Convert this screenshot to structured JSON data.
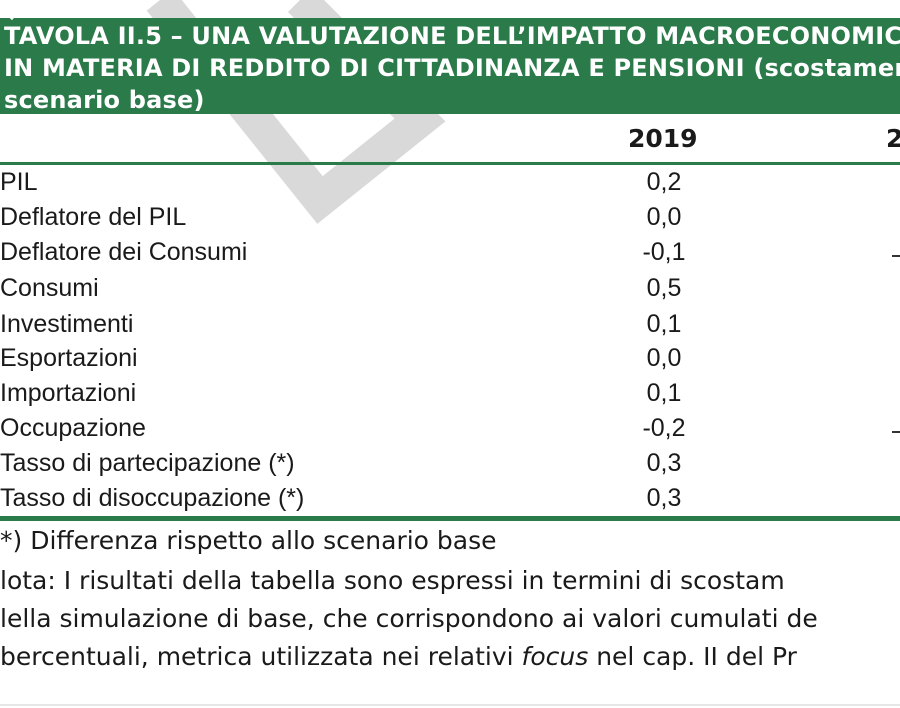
{
  "title": {
    "line1": "TAVOLA II.5 – UNA VALUTAZIONE DELL’IMPATTO MACROECONOMIC",
    "line2": "IN MATERIA DI REDDITO DI CITTADINANZA E PENSIONI (scostamen",
    "line3": "scenario base)"
  },
  "table": {
    "columns": [
      "2019",
      "2"
    ],
    "rows": [
      {
        "label": "PIL",
        "value": "0,2"
      },
      {
        "label": "Deflatore del PIL",
        "value": "0,0"
      },
      {
        "label": "Deflatore dei Consumi",
        "value": "-0,1"
      },
      {
        "label": "Consumi",
        "value": "0,5"
      },
      {
        "label": "Investimenti",
        "value": "0,1"
      },
      {
        "label": "Esportazioni",
        "value": "0,0"
      },
      {
        "label": "Importazioni",
        "value": "0,1"
      },
      {
        "label": "Occupazione",
        "value": "-0,2"
      },
      {
        "label": "Tasso di partecipazione (*)",
        "value": "0,3"
      },
      {
        "label": "Tasso di disoccupazione (*)",
        "value": "0,3"
      }
    ]
  },
  "notes": {
    "footnote": "*) Differenza rispetto allo scenario base",
    "nota_start": "lota: I risultati della tabella sono espressi in termini di scostam",
    "line2": "lella simulazione di base, che corrispondono ai valori cumulati de",
    "line3_before": "bercentuali, metrica utilizzata nei relativi ",
    "line3_italic": "focus",
    "line3_after": " nel cap. II del Pr"
  },
  "colors": {
    "banner": "#2a7a4a",
    "text": "#1a1a1a",
    "watermark": "#d9d9d9"
  }
}
